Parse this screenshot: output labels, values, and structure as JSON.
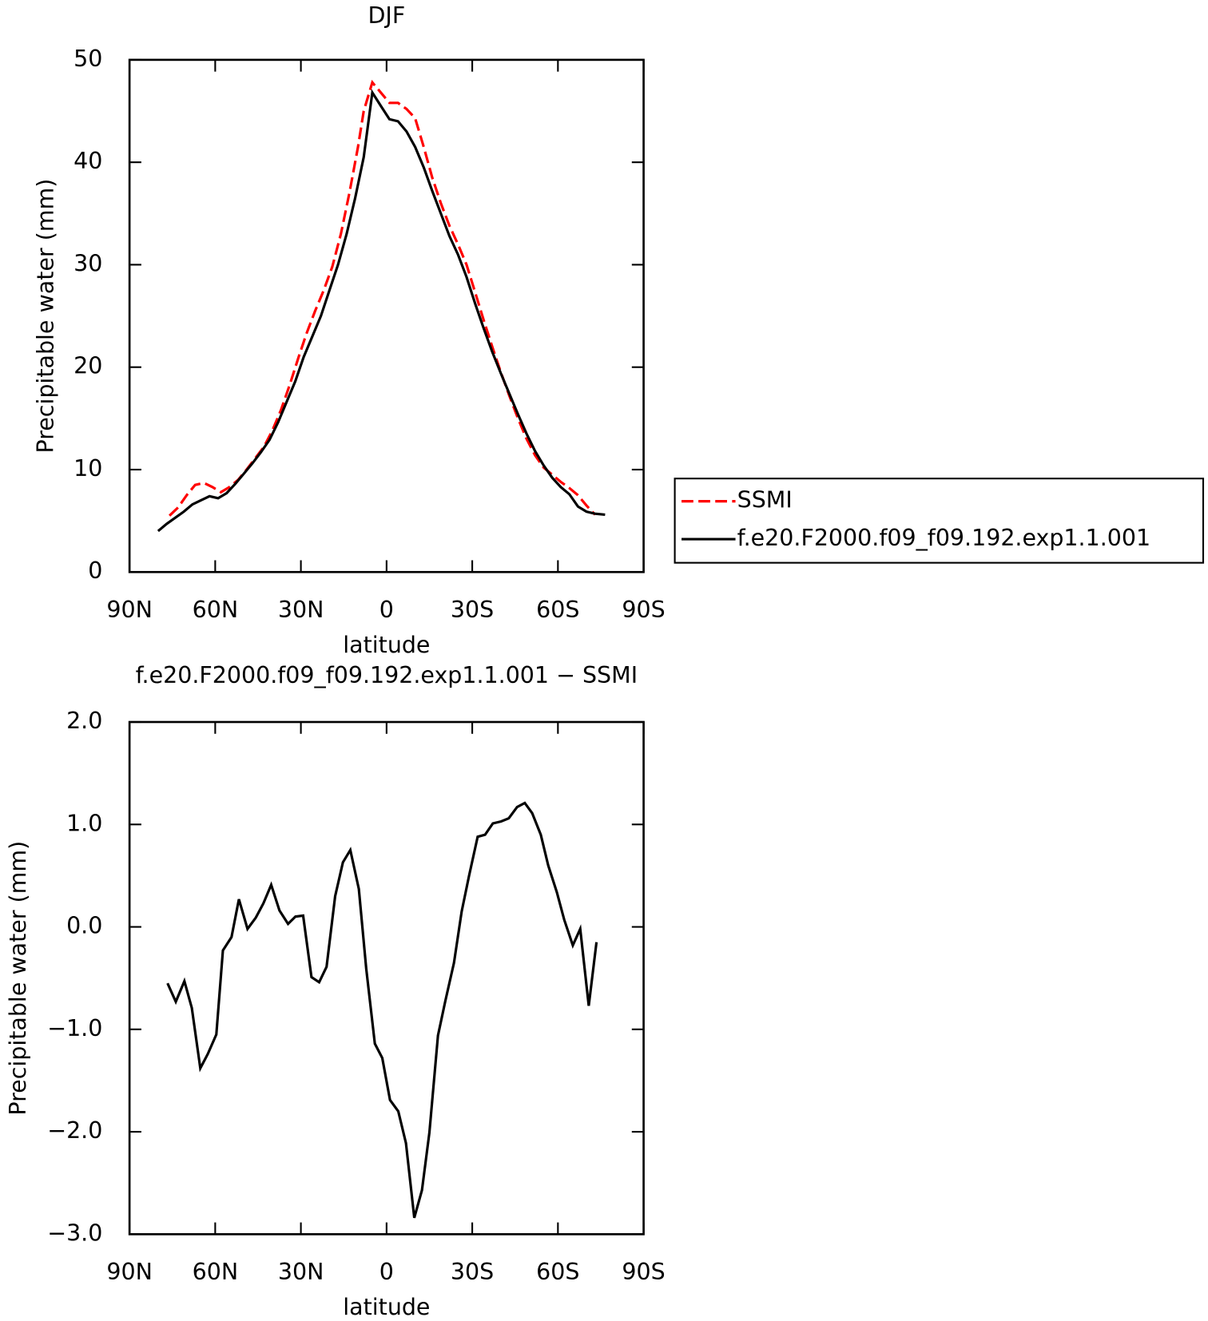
{
  "chart_data": [
    {
      "type": "line",
      "title": "DJF",
      "xlabel": "latitude",
      "ylabel": "Precipitable water (mm)",
      "xlim": [
        90,
        -90
      ],
      "xticks": [
        {
          "value": 90,
          "label": "90N"
        },
        {
          "value": 60,
          "label": "60N"
        },
        {
          "value": 30,
          "label": "30N"
        },
        0,
        {
          "value": -30,
          "label": "30S"
        },
        {
          "value": -60,
          "label": "60S"
        },
        {
          "value": -90,
          "label": "90S"
        }
      ],
      "ylim": [
        0,
        50
      ],
      "yticks": [
        0,
        10,
        20,
        30,
        40,
        50
      ],
      "legend": "right",
      "series": [
        {
          "name": "SSMI",
          "color": "#ff0000",
          "style": "dashed",
          "x": [
            76,
            73,
            70,
            67,
            64,
            61,
            58,
            55,
            52,
            49,
            46,
            43,
            40,
            37,
            34,
            31,
            28,
            25,
            22,
            19,
            16,
            13,
            10,
            8,
            5,
            2,
            -1,
            -4,
            -7,
            -10,
            -13,
            -16,
            -19,
            -22,
            -25,
            -28,
            -31,
            -34,
            -37,
            -40,
            -43,
            -46,
            -49,
            -52,
            -55,
            -58,
            -61,
            -64,
            -67,
            -70,
            -73
          ],
          "values": [
            5.5,
            6.3,
            7.5,
            8.5,
            8.7,
            8.3,
            7.8,
            8.3,
            9.0,
            10.0,
            11.1,
            12.2,
            13.8,
            15.8,
            18.2,
            20.8,
            23.3,
            25.5,
            27.5,
            29.8,
            33.0,
            37.0,
            41.5,
            45.0,
            47.8,
            46.8,
            45.8,
            45.8,
            45.2,
            44.3,
            41.5,
            38.5,
            36.0,
            33.8,
            32.0,
            30.0,
            27.3,
            24.6,
            22.0,
            19.5,
            17.2,
            15.0,
            13.0,
            11.4,
            10.2,
            9.5,
            8.8,
            8.2,
            7.5,
            6.5,
            5.6
          ]
        },
        {
          "name": "f.e20.F2000.f09_f09.192.exp1.1.001",
          "color": "#000000",
          "style": "solid",
          "x": [
            80,
            77,
            74,
            71,
            68,
            65,
            62,
            59,
            56,
            53,
            50,
            47,
            44,
            41,
            38,
            35,
            32,
            29,
            26,
            23,
            20,
            17,
            14,
            11,
            8,
            5,
            2,
            -1,
            -4,
            -7,
            -10,
            -13,
            -16,
            -19,
            -22,
            -25,
            -28,
            -31,
            -34,
            -37,
            -40,
            -43,
            -46,
            -49,
            -52,
            -55,
            -58,
            -61,
            -64,
            -67,
            -70,
            -73,
            -76.5
          ],
          "values": [
            4.0,
            4.7,
            5.3,
            5.9,
            6.6,
            7.0,
            7.4,
            7.2,
            7.7,
            8.6,
            9.6,
            10.6,
            11.7,
            12.9,
            14.6,
            16.6,
            18.6,
            21.0,
            23.0,
            25.0,
            27.5,
            30.0,
            33.0,
            36.5,
            40.5,
            46.8,
            45.5,
            44.2,
            44.0,
            43.0,
            41.5,
            39.5,
            37.2,
            35.0,
            32.8,
            31.0,
            28.8,
            26.2,
            23.8,
            21.5,
            19.4,
            17.4,
            15.4,
            13.5,
            11.8,
            10.4,
            9.2,
            8.3,
            7.6,
            6.4,
            5.9,
            5.7,
            5.6
          ]
        }
      ]
    },
    {
      "type": "line",
      "title": "f.e20.F2000.f09_f09.192.exp1.1.001 − SSMI",
      "xlabel": "latitude",
      "ylabel": "Precipitable water (mm)",
      "xlim": [
        90,
        -90
      ],
      "xticks": [
        {
          "value": 90,
          "label": "90N"
        },
        {
          "value": 60,
          "label": "60N"
        },
        {
          "value": 30,
          "label": "30N"
        },
        0,
        {
          "value": -30,
          "label": "30S"
        },
        {
          "value": -60,
          "label": "60S"
        },
        {
          "value": -90,
          "label": "90S"
        }
      ],
      "ylim": [
        -3,
        2
      ],
      "yticks": [
        {
          "value": -3,
          "label": "−3.0"
        },
        {
          "value": -2,
          "label": "−2.0"
        },
        {
          "value": -1,
          "label": "−1.0"
        },
        {
          "value": 0,
          "label": "0.0"
        },
        {
          "value": 1,
          "label": "1.0"
        },
        {
          "value": 2,
          "label": "2.0"
        }
      ],
      "color": "#000000",
      "x": [
        76.7,
        73.8,
        70.8,
        68.2,
        65.2,
        62.6,
        59.6,
        57.3,
        54.3,
        51.7,
        48.7,
        45.8,
        43.1,
        40.4,
        37.5,
        34.5,
        31.9,
        29.2,
        26.3,
        23.6,
        21.0,
        18.0,
        15.3,
        12.7,
        9.7,
        7.1,
        4.1,
        1.5,
        -1.2,
        -4.1,
        -6.8,
        -9.7,
        -12.4,
        -15.0,
        -18.0,
        -20.6,
        -23.6,
        -26.3,
        -28.9,
        -31.9,
        -34.5,
        -37.2,
        -40.1,
        -42.8,
        -45.7,
        -48.4,
        -51.0,
        -54.0,
        -56.6,
        -59.6,
        -62.2,
        -65.2,
        -67.8,
        -70.8,
        -73.5
      ],
      "values": [
        -0.55,
        -0.73,
        -0.53,
        -0.79,
        -1.38,
        -1.24,
        -1.05,
        -0.23,
        -0.1,
        0.27,
        -0.02,
        0.09,
        0.23,
        0.41,
        0.16,
        0.03,
        0.1,
        0.11,
        -0.49,
        -0.54,
        -0.39,
        0.3,
        0.63,
        0.75,
        0.37,
        -0.41,
        -1.14,
        -1.28,
        -1.69,
        -1.8,
        -2.11,
        -2.84,
        -2.57,
        -2.01,
        -1.06,
        -0.72,
        -0.35,
        0.15,
        0.5,
        0.88,
        0.9,
        1.01,
        1.03,
        1.06,
        1.17,
        1.21,
        1.11,
        0.9,
        0.6,
        0.34,
        0.07,
        -0.18,
        -0.02,
        -0.77,
        -0.15
      ]
    }
  ]
}
